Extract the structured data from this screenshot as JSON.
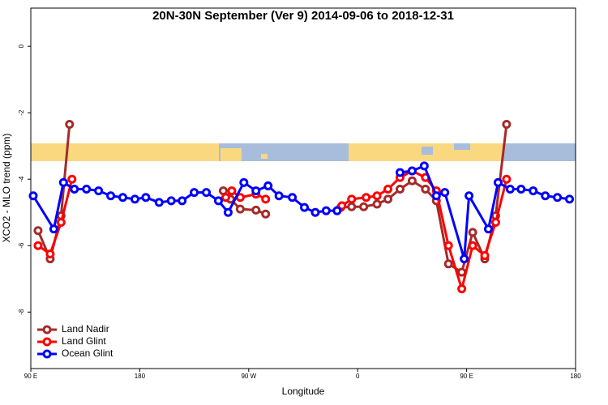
{
  "chart_data": {
    "type": "line",
    "title": "20N-30N September (Ver 9)   2014-09-06 to 2018-12-31",
    "x_label": "Longitude",
    "y_label": "XCO2 - MLO trend (ppm)",
    "xlim": [
      90,
      540
    ],
    "xticks": [
      {
        "value": 90,
        "label": "90 E"
      },
      {
        "value": 180,
        "label": "180"
      },
      {
        "value": 270,
        "label": "90 W"
      },
      {
        "value": 360,
        "label": "0"
      },
      {
        "value": 450,
        "label": "90 E"
      },
      {
        "value": 540,
        "label": "180"
      }
    ],
    "ylim": [
      -9.7,
      1.15
    ],
    "yticks": [
      0,
      -2,
      -4,
      -6,
      -8
    ],
    "legend": "bottom-left",
    "series": [
      {
        "name": "Land Nadir",
        "color": "#a52a2a",
        "x": [
          96,
          106,
          115,
          122,
          null,
          249,
          255,
          263,
          276,
          284,
          null,
          346,
          355,
          365,
          376,
          385,
          395,
          405,
          416,
          425,
          435,
          446,
          455,
          465,
          474,
          483
        ],
        "values": [
          -5.55,
          -6.4,
          -5.1,
          -2.35,
          null,
          -4.35,
          -4.6,
          -4.9,
          -4.93,
          -5.05,
          null,
          -4.85,
          -4.83,
          -4.83,
          -4.75,
          -4.6,
          -4.3,
          -4.05,
          -4.3,
          -4.65,
          -6.55,
          -6.8,
          -5.6,
          -6.4,
          -5.1,
          -2.35
        ]
      },
      {
        "name": "Land Glint",
        "color": "#ff0000",
        "x": [
          96,
          106,
          115,
          124,
          null,
          251,
          256,
          263,
          276,
          284,
          null,
          347,
          355,
          367,
          376,
          385,
          395,
          405,
          416,
          425,
          435,
          446,
          455,
          465,
          474,
          483
        ],
        "values": [
          -6.0,
          -6.25,
          -5.3,
          -4.0,
          null,
          -4.55,
          -4.35,
          -4.55,
          -4.45,
          -4.6,
          null,
          -4.8,
          -4.6,
          -4.55,
          -4.5,
          -4.3,
          -3.95,
          -3.75,
          -3.95,
          -4.35,
          -6.0,
          -7.3,
          -6.0,
          -6.3,
          -5.3,
          -4.0
        ]
      },
      {
        "name": "Ocean Glint",
        "color": "#0000ff",
        "x": [
          92,
          109,
          117,
          126,
          136,
          146,
          156,
          166,
          176,
          185,
          196,
          206,
          215,
          225,
          235,
          245,
          253,
          266,
          276,
          286,
          295,
          306,
          316,
          325,
          334,
          343,
          null,
          395,
          405,
          415,
          425,
          432,
          448,
          452,
          468,
          476,
          486,
          495,
          505,
          515,
          525,
          535
        ],
        "values": [
          -4.5,
          -5.5,
          -4.1,
          -4.3,
          -4.3,
          -4.35,
          -4.5,
          -4.55,
          -4.6,
          -4.55,
          -4.7,
          -4.65,
          -4.65,
          -4.4,
          -4.4,
          -4.65,
          -5.0,
          -4.1,
          -4.35,
          -4.2,
          -4.5,
          -4.55,
          -4.85,
          -5.0,
          -4.95,
          -4.95,
          null,
          -3.8,
          -3.75,
          -3.6,
          -4.5,
          -4.4,
          -6.4,
          -4.5,
          -5.5,
          -4.1,
          -4.3,
          -4.3,
          -4.35,
          -4.5,
          -4.55,
          -4.6
        ]
      }
    ]
  }
}
